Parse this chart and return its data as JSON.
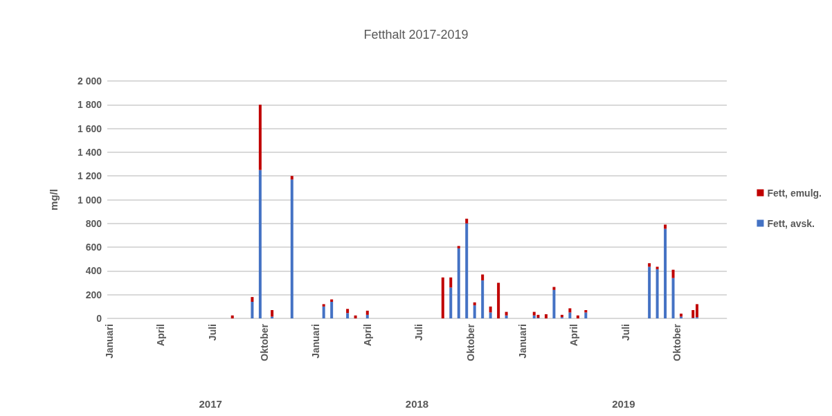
{
  "chart_data": {
    "type": "bar",
    "title": "Fetthalt 2017-2019",
    "ylabel": "mg/l",
    "stacked": true,
    "grid": "y",
    "legend": "right",
    "annotations": [
      "2017",
      "2018",
      "2019"
    ],
    "categories": [
      "Januari",
      null,
      null,
      null,
      null,
      null,
      null,
      null,
      null,
      null,
      null,
      null,
      null,
      "April",
      null,
      null,
      null,
      null,
      null,
      null,
      null,
      null,
      null,
      null,
      null,
      null,
      "Juli",
      null,
      null,
      null,
      null,
      null,
      null,
      null,
      null,
      null,
      null,
      null,
      null,
      "Oktober",
      null,
      null,
      null,
      null,
      null,
      null,
      null,
      null,
      null,
      null,
      null,
      null,
      "Januari",
      null,
      null,
      null,
      null,
      null,
      null,
      null,
      null,
      null,
      null,
      null,
      null,
      "April",
      null,
      null,
      null,
      null,
      null,
      null,
      null,
      null,
      null,
      null,
      null,
      null,
      "Juli",
      null,
      null,
      null,
      null,
      null,
      null,
      null,
      null,
      null,
      null,
      null,
      null,
      "Oktober",
      null,
      null,
      null,
      null,
      null,
      null,
      null,
      null,
      null,
      null,
      null,
      null,
      "Januari",
      null,
      null,
      null,
      null,
      null,
      null,
      null,
      null,
      null,
      null,
      null,
      null,
      "April",
      null,
      null,
      null,
      null,
      null,
      null,
      null,
      null,
      null,
      null,
      null,
      null,
      "Juli",
      null,
      null,
      null,
      null,
      null,
      null,
      null,
      null,
      null,
      null,
      null,
      null,
      "Oktober",
      null,
      null,
      null,
      null,
      null,
      null,
      null,
      null,
      null,
      null,
      null,
      null
    ],
    "ylim": [
      0,
      2000
    ],
    "yticks": [
      0,
      200,
      400,
      600,
      800,
      {
        "value": 1000,
        "label": "1 000"
      },
      {
        "value": 1200,
        "label": "1 200"
      },
      {
        "value": 1400,
        "label": "1 400"
      },
      {
        "value": 1600,
        "label": "1 600"
      },
      {
        "value": 1800,
        "label": "1 800"
      },
      {
        "value": 2000,
        "label": "2 000"
      }
    ],
    "series": [
      {
        "name": "Fett, avsk.",
        "color": "#4472c4",
        "values": [
          null,
          null,
          null,
          null,
          null,
          null,
          null,
          null,
          null,
          null,
          null,
          null,
          null,
          null,
          null,
          null,
          null,
          null,
          null,
          null,
          null,
          null,
          null,
          null,
          null,
          null,
          null,
          null,
          null,
          null,
          null,
          0,
          null,
          null,
          null,
          null,
          140,
          null,
          1250,
          null,
          null,
          15,
          null,
          null,
          null,
          null,
          1170,
          null,
          null,
          null,
          null,
          null,
          null,
          null,
          100,
          null,
          140,
          null,
          null,
          null,
          45,
          null,
          0,
          null,
          null,
          30,
          null,
          null,
          null,
          null,
          null,
          null,
          null,
          null,
          null,
          null,
          null,
          null,
          null,
          null,
          null,
          null,
          null,
          null,
          0,
          null,
          260,
          null,
          590,
          null,
          800,
          null,
          110,
          null,
          320,
          null,
          50,
          null,
          0,
          null,
          25,
          null,
          null,
          null,
          null,
          null,
          null,
          25,
          5,
          null,
          0,
          null,
          240,
          null,
          10,
          null,
          50,
          null,
          0,
          null,
          50,
          null,
          null,
          null,
          null,
          null,
          null,
          null,
          null,
          null,
          null,
          null,
          null,
          null,
          null,
          null,
          435,
          null,
          415,
          null,
          755,
          null,
          340,
          null,
          15,
          null,
          null,
          5,
          10,
          null,
          null,
          null,
          null,
          null,
          null,
          null
        ]
      },
      {
        "name": "Fett, emulg.",
        "color": "#c00000",
        "values": [
          null,
          null,
          null,
          null,
          null,
          null,
          null,
          null,
          null,
          null,
          null,
          null,
          null,
          null,
          null,
          null,
          null,
          null,
          null,
          null,
          null,
          null,
          null,
          null,
          null,
          null,
          null,
          null,
          null,
          null,
          null,
          25,
          null,
          null,
          null,
          null,
          40,
          null,
          550,
          null,
          null,
          55,
          null,
          null,
          null,
          null,
          30,
          null,
          null,
          null,
          null,
          null,
          null,
          null,
          20,
          null,
          20,
          null,
          null,
          null,
          35,
          null,
          25,
          null,
          null,
          35,
          null,
          null,
          null,
          null,
          null,
          null,
          null,
          null,
          null,
          null,
          null,
          null,
          null,
          null,
          null,
          null,
          null,
          null,
          345,
          null,
          85,
          null,
          20,
          null,
          40,
          null,
          25,
          null,
          50,
          null,
          50,
          null,
          300,
          null,
          30,
          null,
          null,
          null,
          null,
          null,
          null,
          30,
          25,
          null,
          35,
          null,
          25,
          null,
          20,
          null,
          35,
          null,
          25,
          null,
          20,
          null,
          null,
          null,
          null,
          null,
          null,
          null,
          null,
          null,
          null,
          null,
          null,
          null,
          null,
          null,
          30,
          null,
          20,
          null,
          35,
          null,
          70,
          null,
          25,
          null,
          null,
          65,
          110,
          null,
          null,
          null,
          null,
          null,
          null,
          null
        ]
      }
    ]
  }
}
